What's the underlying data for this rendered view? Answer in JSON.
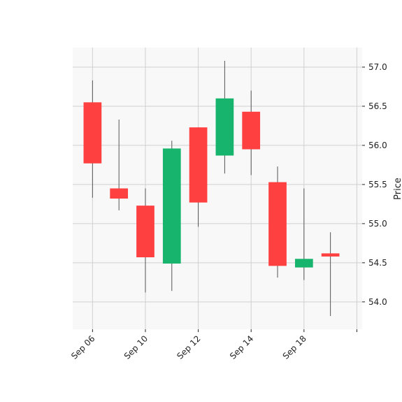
{
  "chart_data": {
    "type": "candlestick",
    "ylabel": "Price",
    "ylim": [
      53.65,
      57.25
    ],
    "yticks": [
      54.0,
      54.5,
      55.0,
      55.5,
      56.0,
      56.5,
      57.0
    ],
    "ytick_labels": [
      "54.0",
      "54.5",
      "55.0",
      "55.5",
      "56.0",
      "56.5",
      "57.0"
    ],
    "xlim": [
      -0.75,
      10.2
    ],
    "xticks": [
      0,
      2,
      4,
      6,
      8,
      10
    ],
    "xtick_labels": [
      "Sep 06",
      "Sep 10",
      "Sep 12",
      "Sep 14",
      "Sep 18",
      ""
    ],
    "grid": true,
    "colors": {
      "up": "#16b46c",
      "down": "#ff4040",
      "wick": "#555555",
      "grid": "#d0d0d0",
      "background": "#f8f8f8"
    },
    "candles": [
      {
        "open": 56.55,
        "high": 56.83,
        "low": 55.33,
        "close": 55.77
      },
      {
        "open": 55.45,
        "high": 56.33,
        "low": 55.17,
        "close": 55.32
      },
      {
        "open": 55.23,
        "high": 55.45,
        "low": 54.12,
        "close": 54.57
      },
      {
        "open": 54.49,
        "high": 56.06,
        "low": 54.14,
        "close": 55.96
      },
      {
        "open": 56.23,
        "high": 56.23,
        "low": 54.96,
        "close": 55.27
      },
      {
        "open": 55.87,
        "high": 57.08,
        "low": 55.64,
        "close": 56.6
      },
      {
        "open": 56.43,
        "high": 56.7,
        "low": 55.62,
        "close": 55.95
      },
      {
        "open": 55.53,
        "high": 55.73,
        "low": 54.31,
        "close": 54.46
      },
      {
        "open": 54.44,
        "high": 55.45,
        "low": 54.28,
        "close": 54.55
      },
      {
        "open": 54.62,
        "high": 54.89,
        "low": 53.82,
        "close": 54.58
      }
    ]
  }
}
